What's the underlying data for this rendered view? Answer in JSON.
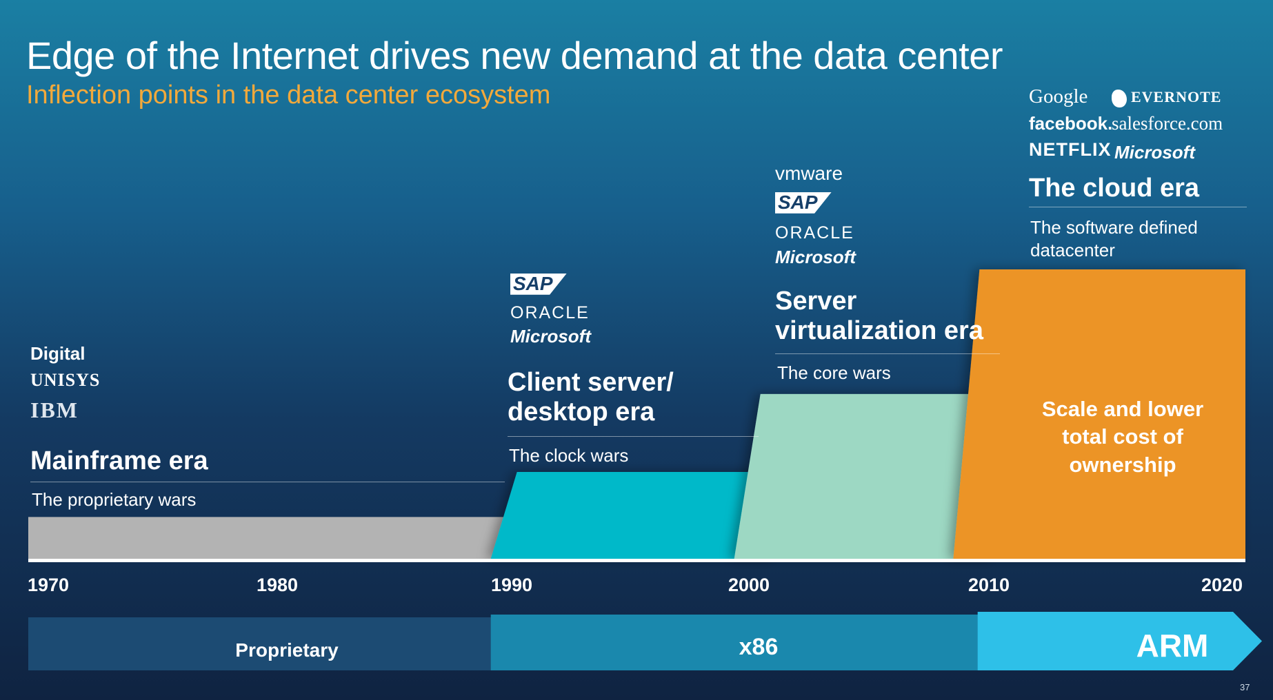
{
  "header": {
    "title": "Edge of the Internet drives new demand at the data center",
    "subtitle": "Inflection points in the data center ecosystem"
  },
  "chart_data": {
    "type": "area",
    "x_unit": "year",
    "xlim": [
      1970,
      2020
    ],
    "x_ticks": [
      "1970",
      "1980",
      "1990",
      "2000",
      "2010",
      "2020"
    ],
    "ylim": [
      0,
      360
    ],
    "eras": [
      {
        "name": "Mainframe era",
        "description": "The proprietary wars",
        "start": 1970,
        "end": 1989,
        "level": 52,
        "color": "#b3b3b3",
        "title_color": "#d6d6d6",
        "logos": [
          "Digital",
          "UNISYS",
          "IBM"
        ]
      },
      {
        "name": "Client server/\ndesktop era",
        "description": "The clock wars",
        "start": 1989,
        "end": 1999,
        "level": 108,
        "color": "#00b9c9",
        "title_color": "#5fc8ea",
        "logos": [
          "SAP",
          "ORACLE",
          "Microsoft"
        ]
      },
      {
        "name": "Server\nvirtualization era",
        "description": "The core wars",
        "start": 1999,
        "end": 2008,
        "level": 205,
        "color": "#9dd8c3",
        "title_color": "#9dd8c3",
        "logos": [
          "vmware",
          "SAP",
          "ORACLE",
          "Microsoft"
        ]
      },
      {
        "name": "The cloud era",
        "description": "The software defined\ndatacenter",
        "start": 2008,
        "end": 2020,
        "level": 360,
        "color": "#ec9427",
        "title_color": "#f2a93b",
        "callout": "Scale and lower\ntotal cost of\nownership",
        "logos": [
          "Google",
          "EVERNOTE",
          "facebook.",
          "salesforce.com",
          "NETFLIX",
          "Microsoft"
        ]
      }
    ],
    "architectures": [
      {
        "label": "Proprietary",
        "start": 1970,
        "end": 1991,
        "color": "#1c4b73"
      },
      {
        "label": "x86",
        "start": 1989,
        "end": 2011,
        "color": "#1a88ad"
      },
      {
        "label": "ARM",
        "start": 2009,
        "end": 2020,
        "color": "#2ec0e8"
      }
    ]
  },
  "footer": {
    "page_number": "37"
  }
}
